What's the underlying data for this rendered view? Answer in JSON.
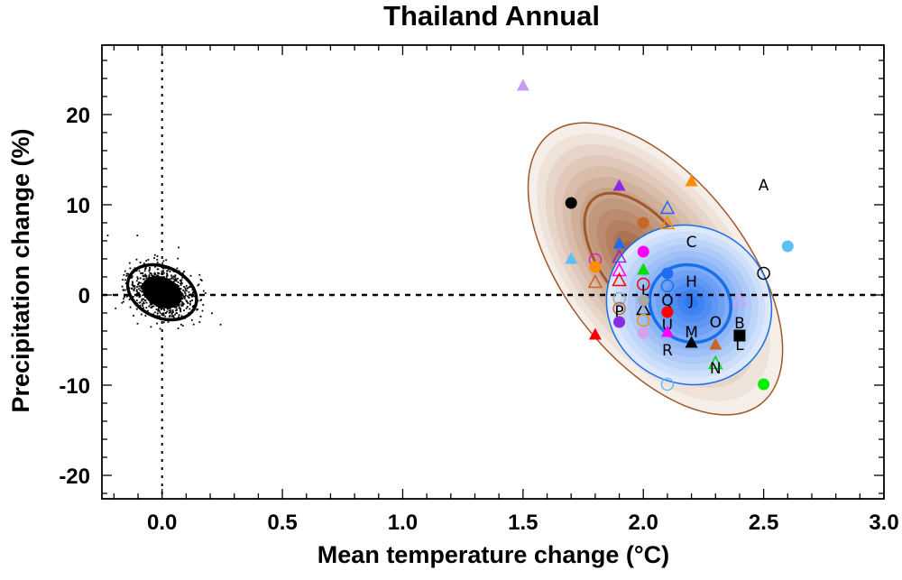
{
  "chart_data": {
    "type": "scatter",
    "title": "Thailand Annual",
    "xlabel": "Mean temperature change (°C)",
    "ylabel": "Precipitation change (%)",
    "xlim": [
      -0.25,
      3.0
    ],
    "ylim": [
      -22.6,
      27.7
    ],
    "xticks": [
      "0.0",
      "0.5",
      "1.0",
      "1.5",
      "2.0",
      "2.5",
      "3.0"
    ],
    "xtick_values": [
      0,
      0.5,
      1.0,
      1.5,
      2.0,
      2.5,
      3.0
    ],
    "yticks": [
      "-20",
      "-10",
      "0",
      "10",
      "20"
    ],
    "ytick_values": [
      -20,
      -10,
      0,
      10,
      20
    ],
    "reference_lines": {
      "x": 0,
      "y": 0,
      "style": "dotted"
    },
    "natural_variability_cloud": {
      "center": [
        0.0,
        0.3
      ],
      "color": "#000000"
    },
    "distributions": [
      {
        "name": "brown-distribution",
        "center": [
          2.05,
          2.9
        ],
        "peak": [
          1.95,
          4.7
        ],
        "color": "#a0582a"
      },
      {
        "name": "blue-distribution",
        "center": [
          2.19,
          -1.1
        ],
        "peak": [
          2.2,
          -0.8
        ],
        "color": "#1a6ee8"
      }
    ],
    "points": [
      {
        "x": 1.5,
        "y": 23.2,
        "shape": "triangle",
        "filled": true,
        "color": "#c89cf0"
      },
      {
        "x": 1.7,
        "y": 10.2,
        "shape": "circle",
        "filled": true,
        "color": "#000000"
      },
      {
        "x": 1.9,
        "y": 12.1,
        "shape": "triangle",
        "filled": true,
        "color": "#8a2be2"
      },
      {
        "x": 2.2,
        "y": 12.6,
        "shape": "triangle",
        "filled": true,
        "color": "#ff8c00"
      },
      {
        "x": 2.5,
        "y": 12.2,
        "shape": "letter",
        "label": "A",
        "color": "#000000"
      },
      {
        "x": 2.1,
        "y": 9.6,
        "shape": "triangle",
        "filled": false,
        "color": "#1e6cf0"
      },
      {
        "x": 2.0,
        "y": 8.0,
        "shape": "circle",
        "filled": true,
        "color": "#c8662a"
      },
      {
        "x": 2.1,
        "y": 7.9,
        "shape": "triangle",
        "filled": false,
        "color": "#ff8c00"
      },
      {
        "x": 2.6,
        "y": 5.4,
        "shape": "circle",
        "filled": true,
        "color": "#5cc0f5"
      },
      {
        "x": 2.2,
        "y": 5.9,
        "shape": "letter",
        "label": "C",
        "color": "#000000"
      },
      {
        "x": 1.9,
        "y": 5.7,
        "shape": "triangle",
        "filled": true,
        "color": "#1e6cf0"
      },
      {
        "x": 2.0,
        "y": 4.8,
        "shape": "circle",
        "filled": true,
        "color": "#ff00ff"
      },
      {
        "x": 1.7,
        "y": 4.0,
        "shape": "triangle",
        "filled": true,
        "color": "#5cc0f5"
      },
      {
        "x": 1.8,
        "y": 3.9,
        "shape": "circle",
        "filled": false,
        "color": "#e020c0"
      },
      {
        "x": 1.8,
        "y": 3.1,
        "shape": "circle",
        "filled": true,
        "color": "#ff8c00"
      },
      {
        "x": 1.9,
        "y": 4.2,
        "shape": "triangle",
        "filled": false,
        "color": "#8a2be2"
      },
      {
        "x": 1.9,
        "y": 2.7,
        "shape": "triangle",
        "filled": false,
        "color": "#ff00ff"
      },
      {
        "x": 1.9,
        "y": 1.6,
        "shape": "triangle",
        "filled": false,
        "color": "#ff0000"
      },
      {
        "x": 2.0,
        "y": 2.8,
        "shape": "triangle",
        "filled": true,
        "color": "#00dd00"
      },
      {
        "x": 2.1,
        "y": 2.4,
        "shape": "circle",
        "filled": true,
        "color": "#1e6cf0"
      },
      {
        "x": 2.5,
        "y": 2.4,
        "shape": "circle",
        "filled": false,
        "color": "#000000"
      },
      {
        "x": 1.8,
        "y": 1.4,
        "shape": "triangle",
        "filled": false,
        "color": "#c8662a"
      },
      {
        "x": 2.2,
        "y": 1.5,
        "shape": "letter",
        "label": "H",
        "color": "#000000"
      },
      {
        "x": 2.1,
        "y": 1.0,
        "shape": "circle",
        "filled": false,
        "color": "#1e6cf0"
      },
      {
        "x": 2.0,
        "y": 1.2,
        "shape": "circle",
        "filled": false,
        "color": "#ff0000"
      },
      {
        "x": 1.9,
        "y": -0.4,
        "shape": "circle",
        "filled": false,
        "color": "#a8a8a8"
      },
      {
        "x": 2.0,
        "y": 0.5,
        "shape": "letter",
        "label": "I",
        "color": "#000000"
      },
      {
        "x": 2.0,
        "y": -1.6,
        "shape": "triangle",
        "filled": false,
        "color": "#000000"
      },
      {
        "x": 2.0,
        "y": -0.6,
        "shape": "circle",
        "filled": true,
        "color": "#a8a8a8"
      },
      {
        "x": 2.4,
        "y": -0.6,
        "shape": "triangle",
        "filled": false,
        "color": "#d4a0f0"
      },
      {
        "x": 2.2,
        "y": -0.5,
        "shape": "letter",
        "label": "J",
        "color": "#000000"
      },
      {
        "x": 2.1,
        "y": -0.6,
        "shape": "letter",
        "label": "Q",
        "color": "#000000"
      },
      {
        "x": 1.9,
        "y": -1.5,
        "shape": "circle",
        "filled": false,
        "color": "#c8662a"
      },
      {
        "x": 1.9,
        "y": -1.8,
        "shape": "letter",
        "label": "P",
        "color": "#000000"
      },
      {
        "x": 2.1,
        "y": -1.9,
        "shape": "circle",
        "filled": true,
        "color": "#ff0000"
      },
      {
        "x": 2.0,
        "y": -2.8,
        "shape": "circle",
        "filled": false,
        "color": "#ff8c00"
      },
      {
        "x": 1.9,
        "y": -3.0,
        "shape": "circle",
        "filled": true,
        "color": "#8a2be2"
      },
      {
        "x": 2.3,
        "y": -3.0,
        "shape": "letter",
        "label": "O",
        "color": "#000000"
      },
      {
        "x": 2.4,
        "y": -3.1,
        "shape": "letter",
        "label": "B",
        "color": "#000000"
      },
      {
        "x": 2.1,
        "y": -3.3,
        "shape": "letter",
        "label": "U",
        "color": "#000000"
      },
      {
        "x": 2.0,
        "y": -4.2,
        "shape": "circle",
        "filled": true,
        "color": "#d4a0f0"
      },
      {
        "x": 2.1,
        "y": -4.1,
        "shape": "triangle",
        "filled": true,
        "color": "#ff00ff"
      },
      {
        "x": 2.2,
        "y": -4.1,
        "shape": "letter",
        "label": "M",
        "color": "#000000"
      },
      {
        "x": 2.4,
        "y": -4.5,
        "shape": "square",
        "filled": true,
        "color": "#000000"
      },
      {
        "x": 1.8,
        "y": -4.4,
        "shape": "triangle",
        "filled": true,
        "color": "#ff0000"
      },
      {
        "x": 2.2,
        "y": -5.3,
        "shape": "triangle",
        "filled": true,
        "color": "#000000"
      },
      {
        "x": 2.3,
        "y": -5.5,
        "shape": "triangle",
        "filled": true,
        "color": "#c8662a"
      },
      {
        "x": 2.4,
        "y": -5.5,
        "shape": "letter",
        "label": "L",
        "color": "#000000"
      },
      {
        "x": 2.1,
        "y": -6.1,
        "shape": "letter",
        "label": "R",
        "color": "#000000"
      },
      {
        "x": 2.3,
        "y": -7.6,
        "shape": "triangle",
        "filled": false,
        "color": "#00dd00"
      },
      {
        "x": 2.3,
        "y": -8.1,
        "shape": "letter",
        "label": "N",
        "color": "#000000"
      },
      {
        "x": 2.1,
        "y": -9.9,
        "shape": "circle",
        "filled": false,
        "color": "#5cc0f5"
      },
      {
        "x": 2.5,
        "y": -9.9,
        "shape": "circle",
        "filled": true,
        "color": "#00ee00"
      }
    ]
  }
}
